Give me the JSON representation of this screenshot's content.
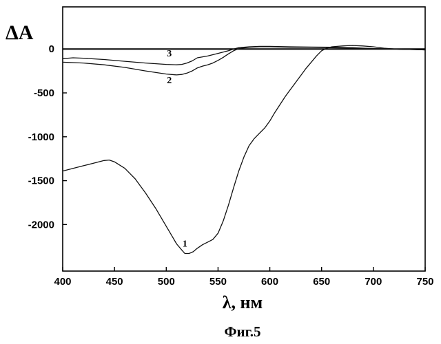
{
  "chart_data": {
    "type": "line",
    "title": "",
    "caption": "Фиг.5",
    "xlabel": "λ, нм",
    "ylabel": "ΔA",
    "xlim": [
      400,
      750
    ],
    "ylim": [
      -2530,
      480
    ],
    "x_ticks": [
      400,
      450,
      500,
      550,
      600,
      650,
      700,
      750
    ],
    "y_ticks": [
      0,
      -500,
      -1000,
      -1500,
      -2000
    ],
    "zero_line": true,
    "grid": false,
    "series": [
      {
        "name": "1",
        "color": "#111111",
        "x": [
          400,
          410,
          420,
          430,
          440,
          445,
          450,
          460,
          470,
          480,
          490,
          500,
          505,
          510,
          515,
          518,
          522,
          526,
          530,
          535,
          540,
          545,
          550,
          555,
          560,
          565,
          570,
          575,
          580,
          585,
          590,
          595,
          600,
          605,
          610,
          615,
          620,
          625,
          630,
          635,
          640,
          645,
          650,
          655,
          660,
          665,
          670,
          675,
          680,
          690,
          700,
          710,
          720,
          730,
          740,
          750
        ],
        "y": [
          -1390,
          -1360,
          -1330,
          -1300,
          -1270,
          -1265,
          -1285,
          -1360,
          -1480,
          -1640,
          -1820,
          -2020,
          -2120,
          -2220,
          -2290,
          -2330,
          -2330,
          -2310,
          -2270,
          -2230,
          -2200,
          -2170,
          -2100,
          -1960,
          -1780,
          -1580,
          -1390,
          -1230,
          -1100,
          -1020,
          -960,
          -900,
          -820,
          -720,
          -630,
          -540,
          -460,
          -380,
          -300,
          -220,
          -150,
          -80,
          -20,
          10,
          25,
          30,
          35,
          38,
          40,
          35,
          25,
          10,
          0,
          -5,
          -5,
          -10
        ]
      },
      {
        "name": "2",
        "color": "#111111",
        "x": [
          400,
          420,
          440,
          460,
          480,
          500,
          510,
          515,
          520,
          525,
          530,
          535,
          540,
          545,
          550,
          555,
          560,
          565,
          570,
          580,
          590,
          600,
          620,
          640,
          660,
          680,
          700,
          720,
          750
        ],
        "y": [
          -150,
          -160,
          -180,
          -210,
          -250,
          -285,
          -295,
          -290,
          -275,
          -250,
          -215,
          -195,
          -180,
          -160,
          -130,
          -95,
          -55,
          -20,
          5,
          20,
          25,
          25,
          20,
          18,
          15,
          10,
          5,
          0,
          -10
        ]
      },
      {
        "name": "3",
        "color": "#111111",
        "x": [
          400,
          410,
          420,
          440,
          460,
          480,
          500,
          510,
          515,
          520,
          525,
          530,
          540,
          550,
          560,
          565,
          570,
          580,
          590,
          600,
          620,
          640,
          660,
          680,
          700,
          720,
          750
        ],
        "y": [
          -110,
          -100,
          -105,
          -120,
          -140,
          -160,
          -175,
          -180,
          -175,
          -160,
          -135,
          -100,
          -80,
          -50,
          -20,
          0,
          15,
          25,
          30,
          30,
          25,
          22,
          20,
          15,
          5,
          0,
          -10
        ]
      }
    ],
    "curve_labels": [
      {
        "text": "1",
        "x": 518,
        "y": -2250
      },
      {
        "text": "2",
        "x": 503,
        "y": -390
      },
      {
        "text": "3",
        "x": 503,
        "y": -85
      }
    ]
  }
}
